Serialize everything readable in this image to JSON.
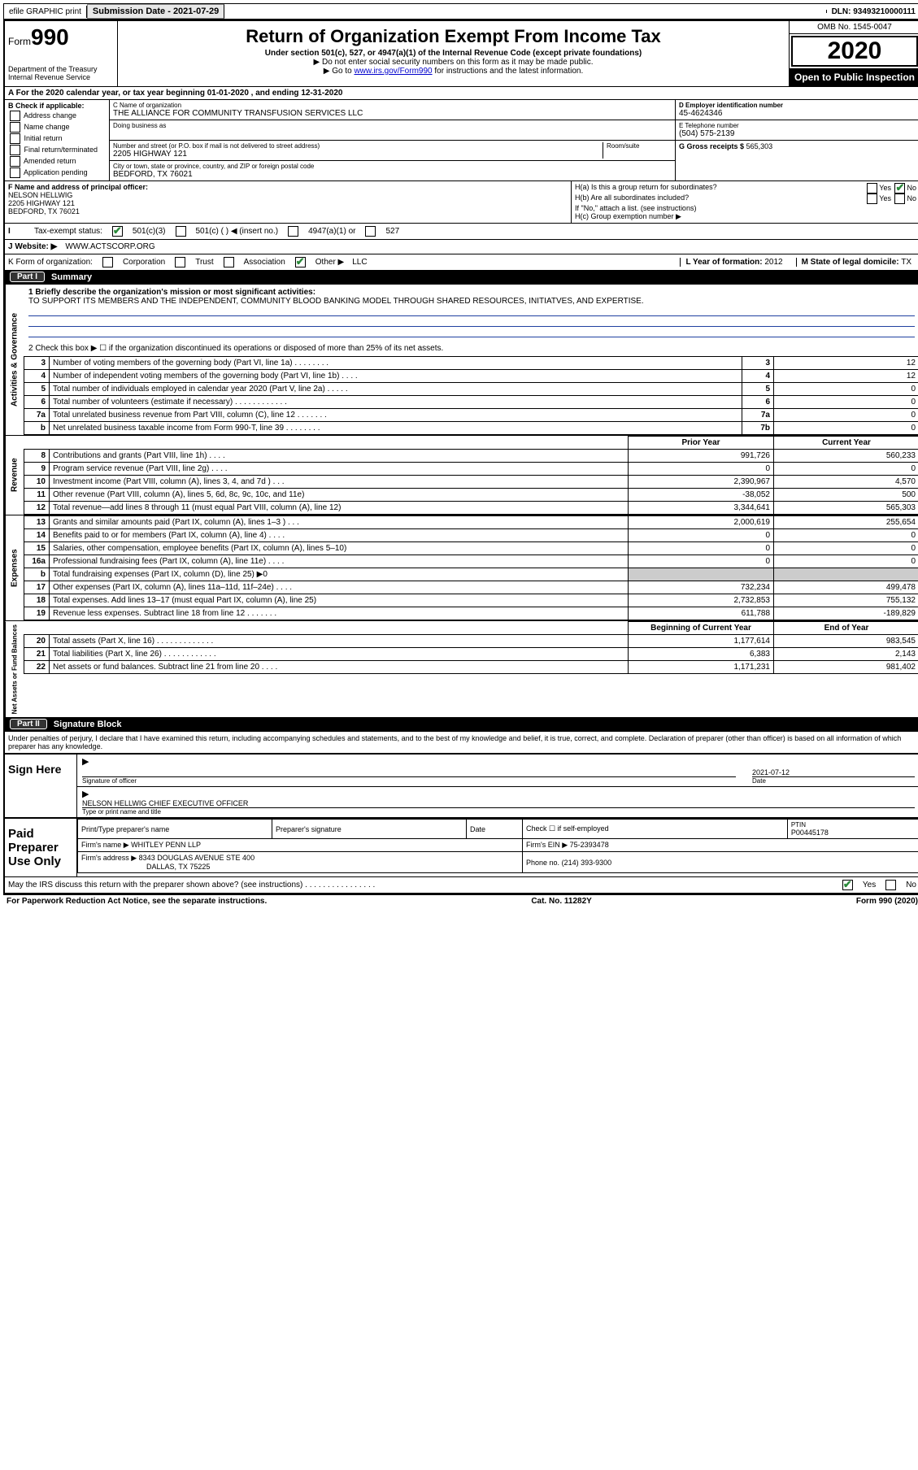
{
  "top_bar": {
    "efile": "efile GRAPHIC print",
    "submission_label": "Submission Date - 2021-07-29",
    "dln": "DLN: 93493210000111"
  },
  "header": {
    "form_word": "Form",
    "form_no": "990",
    "dept": "Department of the Treasury\nInternal Revenue Service",
    "title": "Return of Organization Exempt From Income Tax",
    "sub1": "Under section 501(c), 527, or 4947(a)(1) of the Internal Revenue Code (except private foundations)",
    "sub2": "▶ Do not enter social security numbers on this form as it may be made public.",
    "sub3_pre": "▶ Go to ",
    "sub3_link": "www.irs.gov/Form990",
    "sub3_post": " for instructions and the latest information.",
    "omb": "OMB No. 1545-0047",
    "year": "2020",
    "open": "Open to Public Inspection"
  },
  "row_a": "A For the 2020 calendar year, or tax year beginning 01-01-2020   , and ending 12-31-2020",
  "box_b": {
    "label": "B Check if applicable:",
    "items": [
      "Address change",
      "Name change",
      "Initial return",
      "Final return/terminated",
      "Amended return",
      "Application pending"
    ]
  },
  "box_c": {
    "name_lbl": "C Name of organization",
    "name": "THE ALLIANCE FOR COMMUNITY TRANSFUSION SERVICES LLC",
    "dba_lbl": "Doing business as",
    "addr_lbl": "Number and street (or P.O. box if mail is not delivered to street address)",
    "room_lbl": "Room/suite",
    "addr": "2205 HIGHWAY 121",
    "city_lbl": "City or town, state or province, country, and ZIP or foreign postal code",
    "city": "BEDFORD, TX  76021"
  },
  "box_d": {
    "lbl": "D Employer identification number",
    "val": "45-4624346"
  },
  "box_e": {
    "lbl": "E Telephone number",
    "val": "(504) 575-2139"
  },
  "box_g": {
    "lbl": "G Gross receipts $",
    "val": "565,303"
  },
  "box_f": {
    "lbl": "F Name and address of principal officer:",
    "name": "NELSON HELLWIG",
    "addr1": "2205 HIGHWAY 121",
    "addr2": "BEDFORD, TX  76021"
  },
  "box_h": {
    "a": "H(a)  Is this a group return for subordinates?",
    "b": "H(b)  Are all subordinates included?",
    "ifno": "If \"No,\" attach a list. (see instructions)",
    "c": "H(c)  Group exemption number ▶"
  },
  "row_i": {
    "lbl": "Tax-exempt status:",
    "opts": [
      "501(c)(3)",
      "501(c) (   ) ◀ (insert no.)",
      "4947(a)(1) or",
      "527"
    ]
  },
  "row_j": {
    "lbl": "J  Website: ▶",
    "val": "WWW.ACTSCORP.ORG"
  },
  "row_k": {
    "lbl": "K Form of organization:",
    "opts": [
      "Corporation",
      "Trust",
      "Association",
      "Other ▶"
    ],
    "other": "LLC"
  },
  "row_l": {
    "lbl": "L Year of formation:",
    "val": "2012"
  },
  "row_m": {
    "lbl": "M State of legal domicile:",
    "val": "TX"
  },
  "part1": {
    "hdr": "Part I",
    "title": "Summary",
    "line1_lbl": "1  Briefly describe the organization's mission or most significant activities:",
    "line1_txt": "TO SUPPORT ITS MEMBERS AND THE INDEPENDENT, COMMUNITY BLOOD BANKING MODEL THROUGH SHARED RESOURCES, INITIATVES, AND EXPERTISE.",
    "line2": "2   Check this box ▶ ☐  if the organization discontinued its operations or disposed of more than 25% of its net assets.",
    "side1": "Activities & Governance",
    "side2": "Revenue",
    "side3": "Expenses",
    "side4": "Net Assets or Fund Balances",
    "rows_ag": [
      {
        "n": "3",
        "d": "Number of voting members of the governing body (Part VI, line 1a)  .   .   .   .   .   .   .   .",
        "box": "3",
        "v": "12"
      },
      {
        "n": "4",
        "d": "Number of independent voting members of the governing body (Part VI, line 1b)  .   .   .   .",
        "box": "4",
        "v": "12"
      },
      {
        "n": "5",
        "d": "Total number of individuals employed in calendar year 2020 (Part V, line 2a)  .   .   .   .   .",
        "box": "5",
        "v": "0"
      },
      {
        "n": "6",
        "d": "Total number of volunteers (estimate if necessary)   .   .   .   .   .   .   .   .   .   .   .   .",
        "box": "6",
        "v": "0"
      },
      {
        "n": "7a",
        "d": "Total unrelated business revenue from Part VIII, column (C), line 12  .   .   .   .   .   .   .",
        "box": "7a",
        "v": "0"
      },
      {
        "n": "b",
        "d": "Net unrelated business taxable income from Form 990-T, line 39   .   .   .   .   .   .   .   .",
        "box": "7b",
        "v": "0"
      }
    ],
    "col_py": "Prior Year",
    "col_cy": "Current Year",
    "rows_rev": [
      {
        "n": "8",
        "d": "Contributions and grants (Part VIII, line 1h)   .   .   .   .",
        "py": "991,726",
        "cy": "560,233"
      },
      {
        "n": "9",
        "d": "Program service revenue (Part VIII, line 2g)   .   .   .   .",
        "py": "0",
        "cy": "0"
      },
      {
        "n": "10",
        "d": "Investment income (Part VIII, column (A), lines 3, 4, and 7d )   .   .   .",
        "py": "2,390,967",
        "cy": "4,570"
      },
      {
        "n": "11",
        "d": "Other revenue (Part VIII, column (A), lines 5, 6d, 8c, 9c, 10c, and 11e)",
        "py": "-38,052",
        "cy": "500"
      },
      {
        "n": "12",
        "d": "Total revenue—add lines 8 through 11 (must equal Part VIII, column (A), line 12)",
        "py": "3,344,641",
        "cy": "565,303"
      }
    ],
    "rows_exp": [
      {
        "n": "13",
        "d": "Grants and similar amounts paid (Part IX, column (A), lines 1–3 )  .   .   .",
        "py": "2,000,619",
        "cy": "255,654"
      },
      {
        "n": "14",
        "d": "Benefits paid to or for members (Part IX, column (A), line 4)  .   .   .   .",
        "py": "0",
        "cy": "0"
      },
      {
        "n": "15",
        "d": "Salaries, other compensation, employee benefits (Part IX, column (A), lines 5–10)",
        "py": "0",
        "cy": "0"
      },
      {
        "n": "16a",
        "d": "Professional fundraising fees (Part IX, column (A), line 11e)  .   .   .   .",
        "py": "0",
        "cy": "0"
      },
      {
        "n": "b",
        "d": "Total fundraising expenses (Part IX, column (D), line 25) ▶0",
        "py": "",
        "cy": "",
        "shade": true
      },
      {
        "n": "17",
        "d": "Other expenses (Part IX, column (A), lines 11a–11d, 11f–24e)  .   .   .   .",
        "py": "732,234",
        "cy": "499,478"
      },
      {
        "n": "18",
        "d": "Total expenses. Add lines 13–17 (must equal Part IX, column (A), line 25)",
        "py": "2,732,853",
        "cy": "755,132"
      },
      {
        "n": "19",
        "d": "Revenue less expenses. Subtract line 18 from line 12  .   .   .   .   .   .   .",
        "py": "611,788",
        "cy": "-189,829"
      }
    ],
    "col_bcy": "Beginning of Current Year",
    "col_eoy": "End of Year",
    "rows_na": [
      {
        "n": "20",
        "d": "Total assets (Part X, line 16)  .   .   .   .   .   .   .   .   .   .   .   .   .",
        "py": "1,177,614",
        "cy": "983,545"
      },
      {
        "n": "21",
        "d": "Total liabilities (Part X, line 26)  .   .   .   .   .   .   .   .   .   .   .   .",
        "py": "6,383",
        "cy": "2,143"
      },
      {
        "n": "22",
        "d": "Net assets or fund balances. Subtract line 21 from line 20  .   .   .   .",
        "py": "1,171,231",
        "cy": "981,402"
      }
    ]
  },
  "part2": {
    "hdr": "Part II",
    "title": "Signature Block",
    "penalty": "Under penalties of perjury, I declare that I have examined this return, including accompanying schedules and statements, and to the best of my knowledge and belief, it is true, correct, and complete. Declaration of preparer (other than officer) is based on all information of which preparer has any knowledge.",
    "sign_here": "Sign Here",
    "sig_officer": "Signature of officer",
    "date_lbl": "Date",
    "date_val": "2021-07-12",
    "officer": "NELSON HELLWIG  CHIEF EXECUTIVE OFFICER",
    "officer_lbl": "Type or print name and title",
    "paid": "Paid Preparer Use Only",
    "p_name_lbl": "Print/Type preparer's name",
    "p_sig_lbl": "Preparer's signature",
    "p_date_lbl": "Date",
    "p_check": "Check ☐ if self-employed",
    "ptin_lbl": "PTIN",
    "ptin": "P00445178",
    "firm_name_lbl": "Firm's name   ▶",
    "firm_name": "WHITLEY PENN LLP",
    "firm_ein_lbl": "Firm's EIN ▶",
    "firm_ein": "75-2393478",
    "firm_addr_lbl": "Firm's address ▶",
    "firm_addr1": "8343 DOUGLAS AVENUE STE 400",
    "firm_addr2": "DALLAS, TX  75225",
    "phone_lbl": "Phone no.",
    "phone": "(214) 393-9300",
    "discuss": "May the IRS discuss this return with the preparer shown above? (see instructions)   .   .   .   .   .   .   .   .   .   .   .   .   .   .   .   ."
  },
  "footer": {
    "left": "For Paperwork Reduction Act Notice, see the separate instructions.",
    "mid": "Cat. No. 11282Y",
    "right": "Form 990 (2020)"
  },
  "yes": "Yes",
  "no": "No"
}
